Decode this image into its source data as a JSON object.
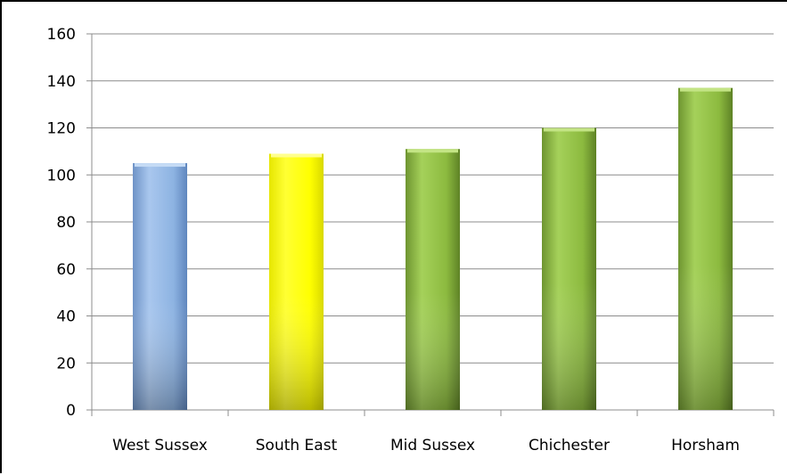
{
  "chart_data": {
    "type": "bar",
    "categories": [
      "West Sussex",
      "South East",
      "Mid Sussex",
      "Chichester",
      "Horsham"
    ],
    "values": [
      105,
      109,
      111,
      120,
      137
    ],
    "bar_colors": [
      "#8DB3E2",
      "#FFFF00",
      "#92C140",
      "#92C140",
      "#92C140"
    ],
    "ylim": [
      0,
      160
    ],
    "yticks": [
      "0",
      "20",
      "40",
      "60",
      "80",
      "100",
      "120",
      "140",
      "160"
    ],
    "grid": true,
    "legend": "none",
    "title": "",
    "xlabel": "",
    "ylabel": ""
  }
}
